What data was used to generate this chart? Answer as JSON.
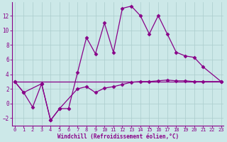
{
  "xlabel": "Windchill (Refroidissement éolien,°C)",
  "background_color": "#cce8e8",
  "grid_color": "#aacccc",
  "line_color": "#880088",
  "curve1_x": [
    0,
    1,
    3,
    4,
    5,
    6,
    7,
    8,
    9,
    10,
    11,
    12,
    13,
    14,
    15,
    16,
    17,
    18,
    19,
    20,
    21,
    23
  ],
  "curve1_y": [
    3.0,
    1.5,
    2.7,
    -2.3,
    -0.7,
    -0.7,
    4.2,
    9.0,
    6.8,
    11.0,
    7.0,
    13.0,
    13.3,
    12.0,
    9.5,
    12.0,
    9.5,
    7.0,
    6.5,
    6.3,
    5.0,
    3.0
  ],
  "curve2_x": [
    0,
    1,
    2,
    3,
    4,
    5,
    7,
    8,
    9,
    10,
    11,
    12,
    13,
    14,
    15,
    16,
    17,
    18,
    19,
    20,
    21,
    23
  ],
  "curve2_y": [
    3.0,
    1.5,
    -0.5,
    2.7,
    -2.3,
    -0.7,
    2.0,
    2.3,
    1.5,
    2.1,
    2.3,
    2.6,
    2.9,
    3.0,
    3.0,
    3.1,
    3.2,
    3.1,
    3.1,
    3.0,
    3.0,
    3.0
  ],
  "curve3_x": [
    0,
    14,
    23
  ],
  "curve3_y": [
    3.0,
    3.0,
    3.0
  ],
  "ylim": [
    -3.0,
    13.8
  ],
  "yticks": [
    -2,
    0,
    2,
    4,
    6,
    8,
    10,
    12
  ],
  "xticks": [
    0,
    1,
    2,
    3,
    4,
    5,
    6,
    7,
    8,
    9,
    10,
    11,
    12,
    13,
    14,
    15,
    16,
    17,
    18,
    19,
    20,
    21,
    22,
    23
  ],
  "marker": "D",
  "markersize": 2.5,
  "linewidth": 0.9,
  "tick_fontsize": 5.0,
  "xlabel_fontsize": 5.5
}
